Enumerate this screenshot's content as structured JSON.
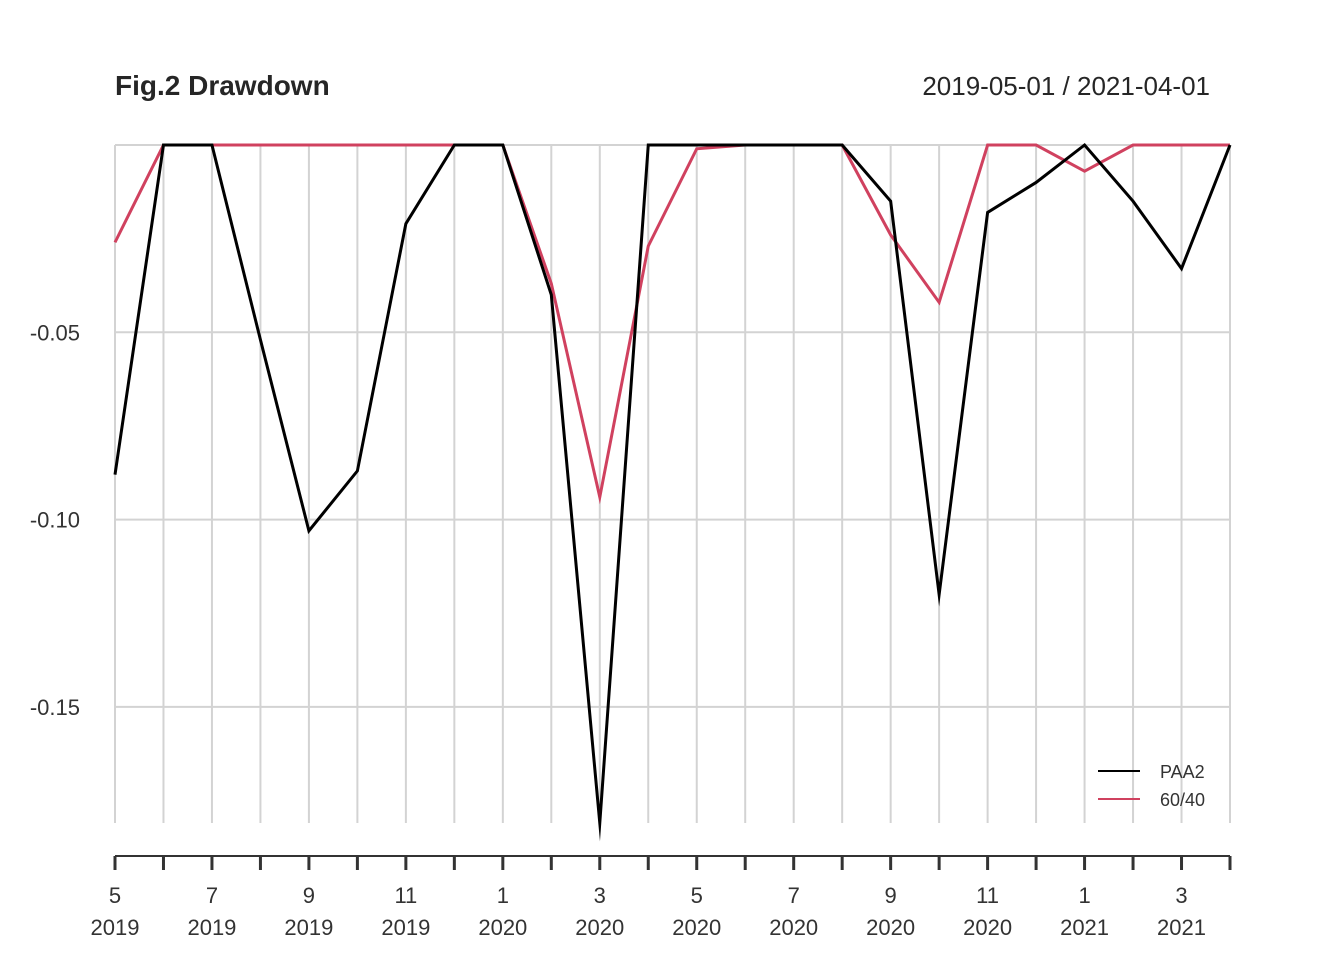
{
  "chart_data": {
    "type": "line",
    "title": "Fig.2 Drawdown",
    "date_range": "2019-05-01 / 2021-04-01",
    "x": [
      "2019-05",
      "2019-06",
      "2019-07",
      "2019-08",
      "2019-09",
      "2019-10",
      "2019-11",
      "2019-12",
      "2020-01",
      "2020-02",
      "2020-03",
      "2020-04",
      "2020-05",
      "2020-06",
      "2020-07",
      "2020-08",
      "2020-09",
      "2020-10",
      "2020-11",
      "2020-12",
      "2021-01",
      "2021-02",
      "2021-03",
      "2021-04"
    ],
    "x_tick_labels": [
      {
        "month": "5",
        "year": "2019"
      },
      {
        "month": "7",
        "year": "2019"
      },
      {
        "month": "9",
        "year": "2019"
      },
      {
        "month": "11",
        "year": "2019"
      },
      {
        "month": "1",
        "year": "2020"
      },
      {
        "month": "3",
        "year": "2020"
      },
      {
        "month": "5",
        "year": "2020"
      },
      {
        "month": "7",
        "year": "2020"
      },
      {
        "month": "9",
        "year": "2020"
      },
      {
        "month": "11",
        "year": "2020"
      },
      {
        "month": "1",
        "year": "2021"
      },
      {
        "month": "3",
        "year": "2021"
      }
    ],
    "y_ticks": [
      -0.05,
      -0.1,
      -0.15
    ],
    "y_tick_labels": [
      "-0.05",
      "-0.10",
      "-0.15"
    ],
    "ylim": [
      -0.181,
      0.0
    ],
    "grid": true,
    "legend_position": "bottom-right",
    "series": [
      {
        "name": "PAA2",
        "color": "#000000",
        "values": [
          -0.088,
          0.0,
          0.0,
          -0.052,
          -0.103,
          -0.087,
          -0.021,
          0.0,
          0.0,
          -0.04,
          -0.181,
          0.0,
          0.0,
          0.0,
          0.0,
          0.0,
          -0.015,
          -0.12,
          -0.018,
          -0.01,
          0.0,
          -0.015,
          -0.033,
          0.0
        ]
      },
      {
        "name": "60/40",
        "color": "#d0415f",
        "values": [
          -0.026,
          0.0,
          0.0,
          0.0,
          0.0,
          0.0,
          0.0,
          0.0,
          0.0,
          -0.037,
          -0.094,
          -0.027,
          -0.001,
          0.0,
          0.0,
          0.0,
          -0.024,
          -0.042,
          0.0,
          0.0,
          -0.007,
          0.0,
          0.0,
          0.0
        ]
      }
    ]
  }
}
